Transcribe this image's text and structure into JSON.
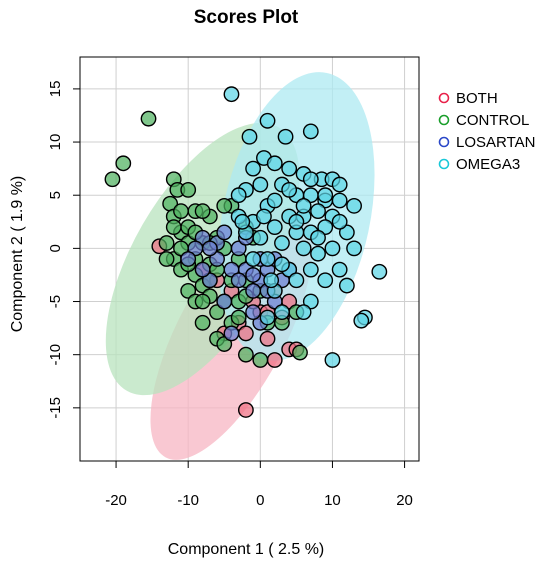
{
  "chart_data": {
    "type": "scatter",
    "title": "Scores Plot",
    "xlabel": "Component 1 ( 2.5 %)",
    "ylabel": "Component 2 ( 1.9 %)",
    "xlim": [
      -25,
      22
    ],
    "ylim": [
      -20,
      18
    ],
    "xticks": [
      -20,
      -10,
      0,
      10,
      20
    ],
    "yticks": [
      -15,
      -10,
      -5,
      0,
      5,
      10,
      15
    ],
    "xtick_labels": [
      "-20",
      "-10",
      "0",
      "10",
      "20"
    ],
    "ytick_labels": [
      "-15",
      "-10",
      "-5",
      "0",
      "5",
      "10",
      "15"
    ],
    "grid": true,
    "legend_position": "right-top",
    "legend": [
      "BOTH",
      "CONTROL",
      "LOSARTAN",
      "OMEGA3"
    ],
    "series": [
      {
        "name": "BOTH",
        "color": "#e8214a",
        "fill": "#ee6f82",
        "ellipse": {
          "cx": -4,
          "cy": -8,
          "rx": 7.4,
          "ry": 13.2,
          "angle_deg": 28,
          "color": "#f7b6c3"
        },
        "points": [
          [
            -2,
            -15.2
          ],
          [
            -14,
            0.2
          ],
          [
            2,
            -10.5
          ],
          [
            4,
            -9.5
          ],
          [
            5,
            -9.5
          ],
          [
            1,
            -8.5
          ],
          [
            -3,
            -7
          ],
          [
            -2,
            -8
          ],
          [
            0,
            -6
          ],
          [
            3,
            -6.5
          ],
          [
            -4,
            -4
          ],
          [
            -6,
            -3
          ],
          [
            2,
            -4
          ],
          [
            4,
            -5
          ],
          [
            -8,
            -2
          ],
          [
            -1,
            -5
          ],
          [
            -5,
            -8
          ],
          [
            1,
            -6
          ]
        ]
      },
      {
        "name": "CONTROL",
        "color": "#1a9e2b",
        "fill": "#4fb25f",
        "ellipse": {
          "cx": -8,
          "cy": -1,
          "rx": 9.6,
          "ry": 14.3,
          "angle_deg": 30,
          "color": "#b8e3bd"
        },
        "points": [
          [
            -15.5,
            12.2
          ],
          [
            -19,
            8
          ],
          [
            -20.5,
            6.5
          ],
          [
            -12,
            6.5
          ],
          [
            -11.5,
            5.5
          ],
          [
            -10,
            5.5
          ],
          [
            -12.5,
            4.2
          ],
          [
            -9,
            3.5
          ],
          [
            -7,
            3
          ],
          [
            -8,
            3.5
          ],
          [
            -12,
            3
          ],
          [
            -11,
            1.5
          ],
          [
            -13,
            0.5
          ],
          [
            -10,
            0.5
          ],
          [
            -12,
            -1
          ],
          [
            -11,
            -2
          ],
          [
            -9,
            -2.5
          ],
          [
            -8,
            -3.5
          ],
          [
            -10,
            -4
          ],
          [
            -7,
            -4.5
          ],
          [
            -5,
            -5
          ],
          [
            -3,
            -5
          ],
          [
            -6,
            -6
          ],
          [
            -8,
            -7
          ],
          [
            -4,
            -7
          ],
          [
            -6,
            -8.5
          ],
          [
            0,
            -10.5
          ],
          [
            -2,
            -10
          ],
          [
            5.5,
            -9.8
          ],
          [
            -9,
            -1
          ],
          [
            -7,
            -1.5
          ],
          [
            -5,
            0
          ],
          [
            -4,
            4
          ],
          [
            -2,
            2
          ],
          [
            -6,
            1
          ],
          [
            -10,
            2
          ],
          [
            -11,
            0
          ],
          [
            -13,
            -1
          ],
          [
            -9,
            -5
          ],
          [
            -7,
            -3
          ],
          [
            -3,
            -1
          ],
          [
            -2,
            -3
          ],
          [
            0,
            -4
          ],
          [
            -1,
            1
          ],
          [
            -12,
            2
          ],
          [
            -5,
            4
          ],
          [
            -8,
            0.5
          ],
          [
            -6,
            -2
          ],
          [
            -4,
            -3
          ],
          [
            -10,
            -1.5
          ],
          [
            -9,
            1.5
          ],
          [
            -7,
            0.5
          ],
          [
            -11,
            3.5
          ],
          [
            -3,
            -6.5
          ],
          [
            3,
            -7
          ],
          [
            5,
            -6
          ],
          [
            1,
            -7
          ],
          [
            -2,
            -4.5
          ],
          [
            -5,
            -9
          ],
          [
            -8,
            -5
          ]
        ]
      },
      {
        "name": "LOSARTAN",
        "color": "#2a47c8",
        "fill": "#6d7fd4",
        "ellipse": null,
        "points": [
          [
            -8,
            1
          ],
          [
            -6,
            -1
          ],
          [
            -4,
            -2
          ],
          [
            -2,
            -2
          ],
          [
            -3,
            0
          ],
          [
            0,
            -3
          ],
          [
            1,
            -2
          ],
          [
            -1,
            -4
          ],
          [
            2,
            -5
          ],
          [
            0,
            -7
          ],
          [
            -4,
            -8
          ],
          [
            -5,
            -5
          ],
          [
            -7,
            -3
          ],
          [
            -9,
            0
          ],
          [
            -3,
            -3
          ],
          [
            1,
            -4
          ],
          [
            -2,
            1
          ],
          [
            0,
            -1
          ],
          [
            3,
            -3
          ],
          [
            -6,
            0.5
          ],
          [
            -10,
            -1
          ],
          [
            -5,
            1.5
          ],
          [
            -1,
            -2.5
          ],
          [
            2,
            -1
          ],
          [
            -8,
            -2
          ],
          [
            -7,
            0
          ],
          [
            -1,
            -6
          ],
          [
            4,
            -2
          ]
        ]
      },
      {
        "name": "OMEGA3",
        "color": "#18c8d8",
        "fill": "#5dd6e6",
        "ellipse": {
          "cx": 5,
          "cy": 3,
          "rx": 10.2,
          "ry": 13.8,
          "angle_deg": 12,
          "color": "#aee9f2"
        },
        "points": [
          [
            -4,
            14.5
          ],
          [
            1,
            12
          ],
          [
            -1.5,
            10.5
          ],
          [
            3.5,
            10.5
          ],
          [
            7,
            11
          ],
          [
            0.5,
            8.5
          ],
          [
            2,
            8
          ],
          [
            -1,
            7.5
          ],
          [
            4,
            7.5
          ],
          [
            6,
            7
          ],
          [
            8.5,
            6.5
          ],
          [
            10,
            6.5
          ],
          [
            11,
            6
          ],
          [
            -2,
            5.5
          ],
          [
            -3,
            5
          ],
          [
            0,
            6
          ],
          [
            3,
            6
          ],
          [
            5,
            5
          ],
          [
            7,
            5
          ],
          [
            9,
            4.5
          ],
          [
            11,
            4.5
          ],
          [
            1,
            4
          ],
          [
            4,
            3
          ],
          [
            6,
            3
          ],
          [
            8,
            3.5
          ],
          [
            10,
            3
          ],
          [
            -1,
            2.5
          ],
          [
            2,
            2
          ],
          [
            5,
            1.5
          ],
          [
            7,
            1.5
          ],
          [
            9,
            2
          ],
          [
            12,
            1.5
          ],
          [
            0,
            1
          ],
          [
            3,
            0.5
          ],
          [
            6,
            0
          ],
          [
            8,
            -0.5
          ],
          [
            10,
            0
          ],
          [
            13,
            0
          ],
          [
            1,
            -1
          ],
          [
            4,
            -2
          ],
          [
            7,
            -2
          ],
          [
            9,
            -3
          ],
          [
            11,
            -2
          ],
          [
            16.5,
            -2.2
          ],
          [
            12,
            -3.5
          ],
          [
            2,
            -4
          ],
          [
            5,
            -3
          ],
          [
            7,
            -5
          ],
          [
            14.5,
            -6.5
          ],
          [
            14,
            -6.8
          ],
          [
            10,
            -10.5
          ],
          [
            3,
            -6
          ],
          [
            6,
            -6
          ],
          [
            1,
            -6.5
          ],
          [
            -2,
            1.5
          ],
          [
            -3,
            3
          ],
          [
            4,
            5.5
          ],
          [
            6,
            4
          ],
          [
            2,
            4.5
          ],
          [
            8,
            1
          ],
          [
            11,
            2.5
          ],
          [
            3,
            -1.5
          ],
          [
            5,
            2.5
          ],
          [
            -1,
            -1
          ],
          [
            13,
            4
          ],
          [
            9,
            5
          ],
          [
            7,
            6.5
          ],
          [
            0.5,
            3
          ],
          [
            1.5,
            -3
          ],
          [
            -2.5,
            2.5
          ]
        ]
      }
    ]
  }
}
